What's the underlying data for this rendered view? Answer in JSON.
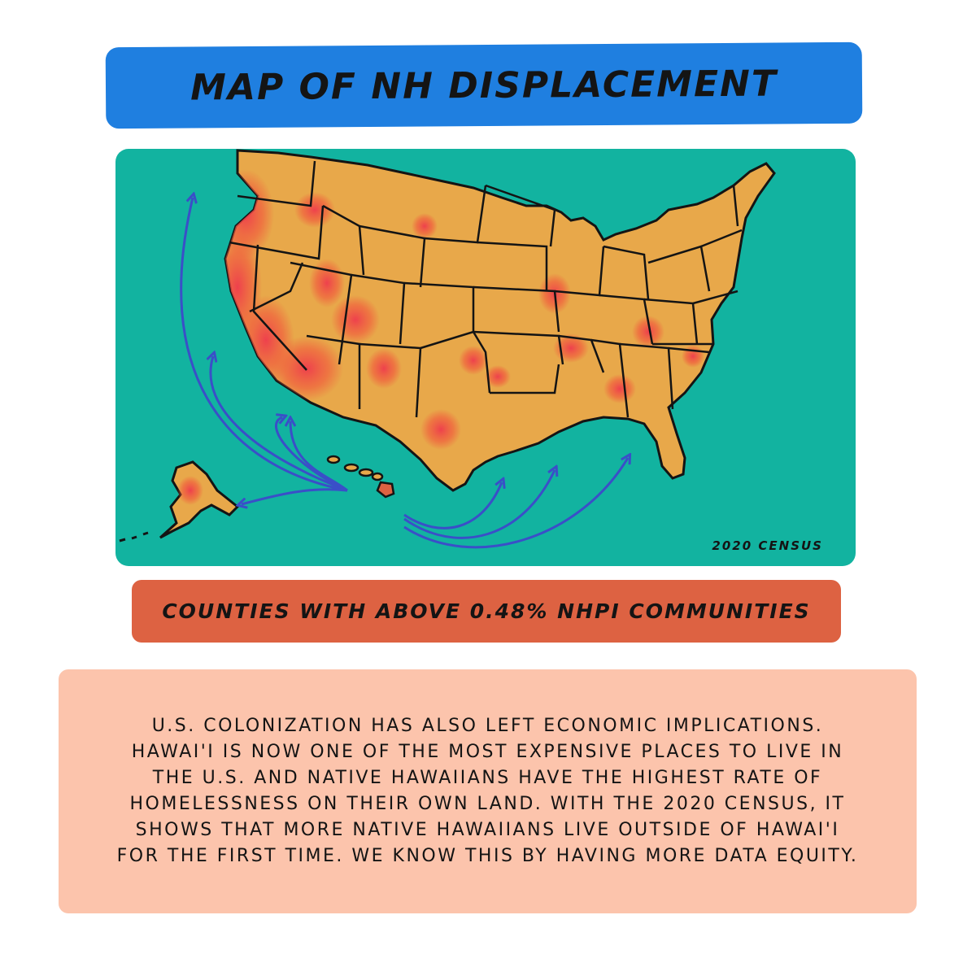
{
  "title": "MAP OF NH DISPLACEMENT",
  "map": {
    "source_label": "2020 CENSUS",
    "colors": {
      "ocean": "#12b3a0",
      "land": "#e8a84a",
      "high_density": "#ef3b4d",
      "mid_density": "#f0693e",
      "arrows": "#3a4fc8",
      "borders": "#141414"
    }
  },
  "legend": {
    "label": "COUNTIES WITH ABOVE 0.48% NHPI COMMUNITIES"
  },
  "description": "U.S. COLONIZATION HAS ALSO LEFT ECONOMIC IMPLICATIONS. HAWAI'I IS NOW ONE OF THE MOST EXPENSIVE PLACES TO LIVE IN THE U.S. AND NATIVE HAWAIIANS HAVE THE HIGHEST RATE OF HOMELESSNESS ON THEIR OWN LAND. WITH THE 2020 CENSUS, IT SHOWS THAT MORE NATIVE HAWAIIANS LIVE OUTSIDE OF HAWAI'I FOR THE FIRST TIME. WE KNOW THIS BY HAVING MORE DATA EQUITY."
}
